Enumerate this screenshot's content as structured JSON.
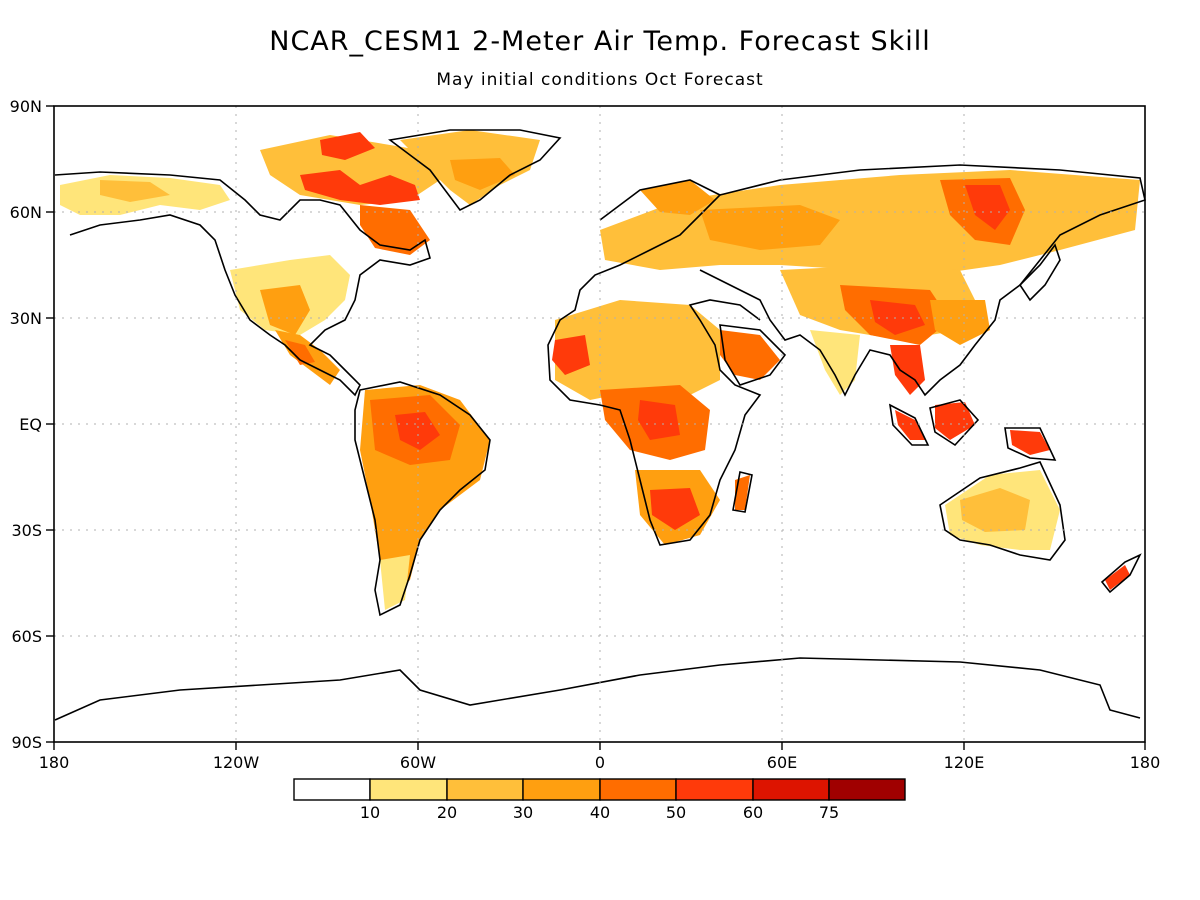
{
  "title": "NCAR_CESM1 2-Meter Air Temp. Forecast Skill",
  "subtitle": "May initial conditions  Oct Forecast",
  "lat_labels": [
    "90N",
    "60N",
    "30N",
    "EQ",
    "30S",
    "60S",
    "90S"
  ],
  "lon_labels": [
    "180",
    "120W",
    "60W",
    "0",
    "60E",
    "120E",
    "180"
  ],
  "legend": {
    "labels": [
      "10",
      "20",
      "30",
      "40",
      "50",
      "60",
      "75"
    ],
    "colors": [
      "#ffffff",
      "#ffe57a",
      "#ffbf3a",
      "#ff9f10",
      "#ff6d00",
      "#ff3a0a",
      "#dd1400",
      "#a00000"
    ]
  },
  "colors": {
    "coast": "#000000",
    "grid": "#b0b0b0"
  }
}
